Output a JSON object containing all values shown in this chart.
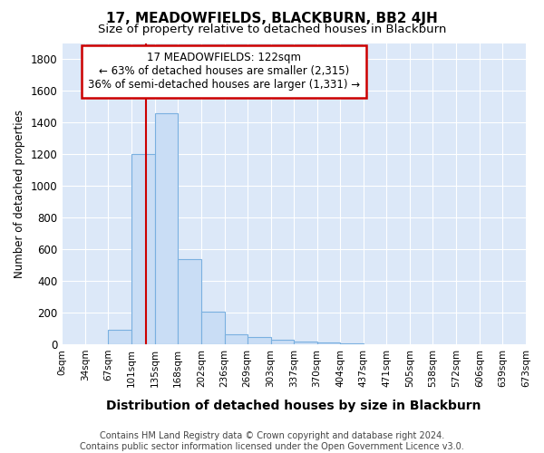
{
  "title": "17, MEADOWFIELDS, BLACKBURN, BB2 4JH",
  "subtitle": "Size of property relative to detached houses in Blackburn",
  "xlabel": "Distribution of detached houses by size in Blackburn",
  "ylabel": "Number of detached properties",
  "footer": "Contains HM Land Registry data © Crown copyright and database right 2024.\nContains public sector information licensed under the Open Government Licence v3.0.",
  "bin_edges": [
    0,
    34,
    67,
    101,
    135,
    168,
    202,
    236,
    269,
    303,
    337,
    370,
    404,
    437,
    471,
    505,
    538,
    572,
    606,
    639,
    673
  ],
  "bar_heights": [
    0,
    0,
    90,
    1200,
    1460,
    540,
    205,
    65,
    45,
    32,
    20,
    10,
    8,
    0,
    0,
    0,
    0,
    0,
    0,
    0
  ],
  "bar_color": "#c9ddf5",
  "bar_edge_color": "#7ab0e0",
  "property_size": 122,
  "red_line_color": "#cc0000",
  "annotation_text": "17 MEADOWFIELDS: 122sqm\n← 63% of detached houses are smaller (2,315)\n36% of semi-detached houses are larger (1,331) →",
  "annotation_box_color": "#ffffff",
  "annotation_box_edge": "#cc0000",
  "ylim": [
    0,
    1900
  ],
  "yticks": [
    0,
    200,
    400,
    600,
    800,
    1000,
    1200,
    1400,
    1600,
    1800
  ],
  "fig_background_color": "#ffffff",
  "plot_bg_color": "#dce8f8",
  "grid_color": "#ffffff",
  "title_fontsize": 11,
  "subtitle_fontsize": 9.5
}
